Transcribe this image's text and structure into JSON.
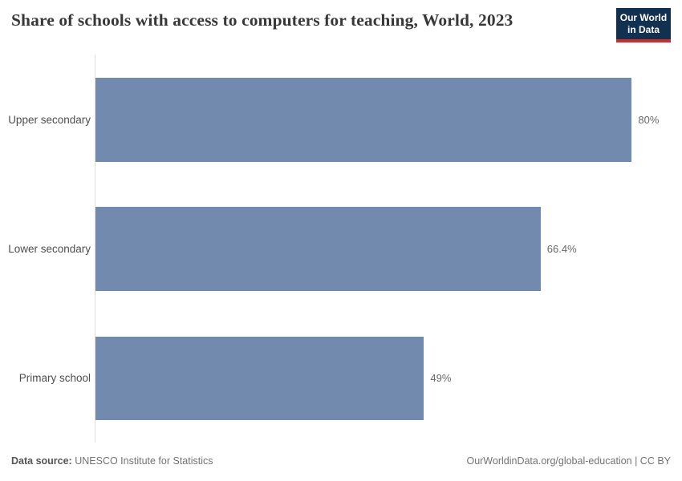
{
  "header": {
    "title": "Share of schools with access to computers for teaching, World, 2023",
    "logo": {
      "line1": "Our World",
      "line2": "in Data"
    }
  },
  "chart_data": {
    "type": "bar",
    "orientation": "horizontal",
    "title": "Share of schools with access to computers for teaching, World, 2023",
    "categories": [
      "Upper secondary",
      "Lower secondary",
      "Primary school"
    ],
    "values": [
      80,
      66.4,
      49
    ],
    "value_labels": [
      "80%",
      "66.4%",
      "49%"
    ],
    "unit": "%",
    "xlabel": "",
    "ylabel": "",
    "xlim": [
      0,
      86
    ],
    "grid": false,
    "legend": "none",
    "bar_color": "#718aad"
  },
  "footer": {
    "source_label": "Data source:",
    "source_value": "UNESCO Institute for Statistics",
    "right_text": "OurWorldinData.org/global-education | CC BY"
  },
  "colors": {
    "bar": "#718aad",
    "axis_line": "#dedede",
    "logo_navy": "#12304f",
    "logo_red": "#c9302b",
    "title_text": "#383838",
    "category_text": "#4e4e4e",
    "value_text": "#696969",
    "footer_text": "#737373"
  }
}
